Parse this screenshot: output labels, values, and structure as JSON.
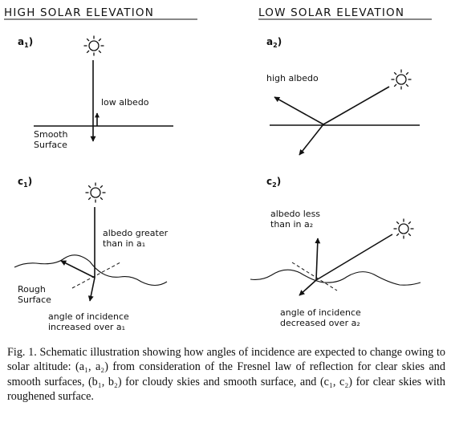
{
  "headings": {
    "left": "HIGH  SOLAR  ELEVATION",
    "right": "LOW  SOLAR  ELEVATION"
  },
  "panels": {
    "a1": {
      "letter": "a",
      "sub": "1",
      "suffix": ")"
    },
    "a2": {
      "letter": "a",
      "sub": "2",
      "suffix": ")"
    },
    "c1": {
      "letter": "c",
      "sub": "1",
      "suffix": ")"
    },
    "c2": {
      "letter": "c",
      "sub": "2",
      "suffix": ")"
    }
  },
  "labels": {
    "a1_albedo": "low albedo",
    "a1_surface_line1": "Smooth",
    "a1_surface_line2": "Surface",
    "a2_albedo": "high albedo",
    "c1_albedo_line1": "albedo greater",
    "c1_albedo_line2": "than in a₁",
    "c1_surface_line1": "Rough",
    "c1_surface_line2": "Surface",
    "c1_incidence_line1": "angle of incidence",
    "c1_incidence_line2": "increased over a₁",
    "c2_albedo_line1": "albedo less",
    "c2_albedo_line2": "than in a₂",
    "c2_incidence_line1": "angle of incidence",
    "c2_incidence_line2": "decreased over a₂"
  },
  "caption": "Fig. 1.  Schematic illustration showing how angles of incidence are expected to change owing to solar altitude: (a₁, a₂) from consideration of the Fresnel law of reflection for clear skies and smooth surfaces, (b₁, b₂) for cloudy skies and smooth surface, and (c₁, c₂) for clear skies with roughened surface."
}
